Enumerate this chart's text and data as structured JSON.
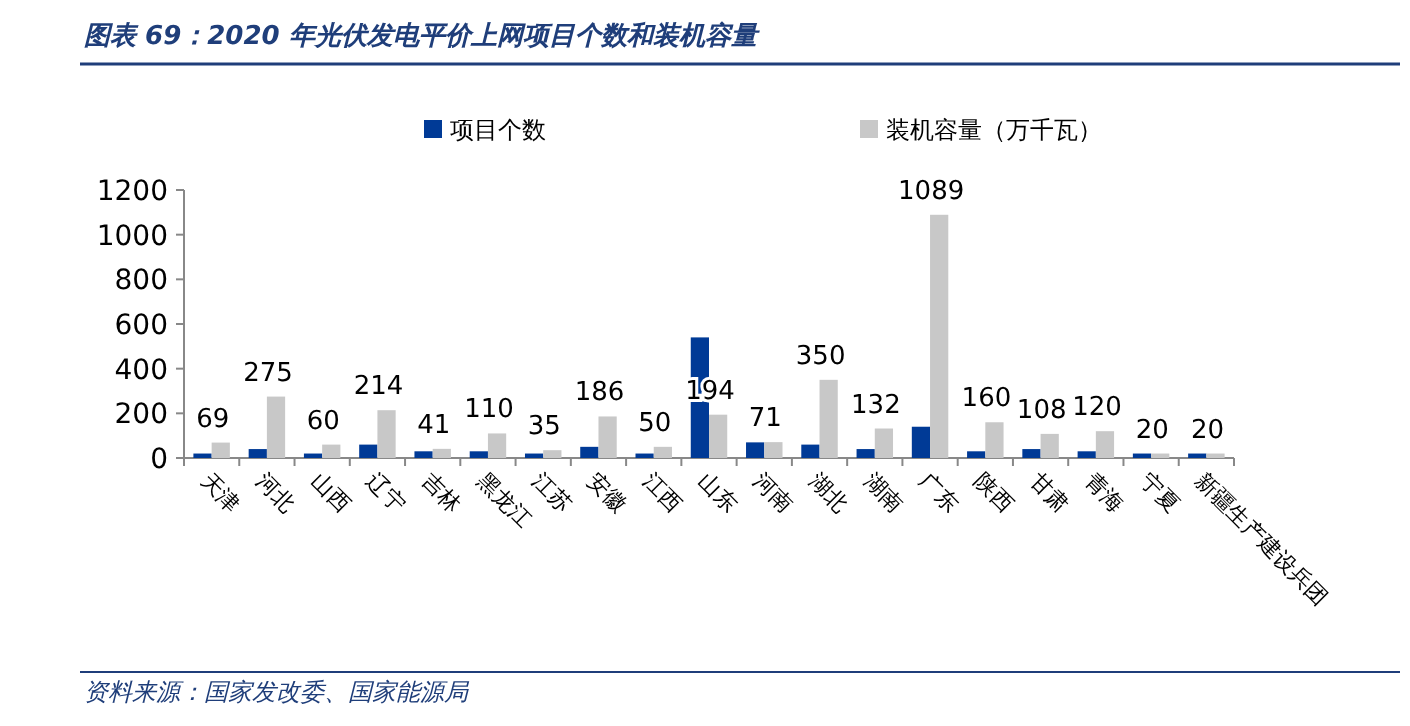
{
  "chart_data": {
    "type": "bar",
    "title": "图表 69：2020 年光伏发电平价上网项目个数和装机容量",
    "categories": [
      "天津",
      "河北",
      "山西",
      "辽宁",
      "吉林",
      "黑龙江",
      "江苏",
      "安徽",
      "江西",
      "山东",
      "河南",
      "湖北",
      "湖南",
      "广东",
      "陕西",
      "甘肃",
      "青海",
      "宁夏",
      "新疆生产建设兵团"
    ],
    "series": [
      {
        "name": "项目个数",
        "color": "#003a96",
        "values": [
          20,
          40,
          20,
          60,
          30,
          30,
          20,
          50,
          20,
          540,
          70,
          60,
          40,
          140,
          30,
          40,
          30,
          20,
          20
        ]
      },
      {
        "name": "装机容量（万千瓦）",
        "color": "#c8c8c8",
        "values": [
          69,
          275,
          60,
          214,
          41,
          110,
          35,
          186,
          50,
          194,
          71,
          350,
          132,
          1089,
          160,
          108,
          120,
          20,
          20
        ],
        "value_labels": [
          "69",
          "275",
          "60",
          "214",
          "41",
          "110",
          "35",
          "186",
          "50",
          "194",
          "71",
          "350",
          "132",
          "1089",
          "160",
          "108",
          "120",
          "20",
          "20"
        ]
      }
    ],
    "ylim": [
      0,
      1200
    ],
    "yticks": [
      0,
      200,
      400,
      600,
      800,
      1000,
      1200
    ],
    "grid": false,
    "legend": "top",
    "annotations": [
      "资料来源：国家发改委、国家能源局"
    ]
  }
}
